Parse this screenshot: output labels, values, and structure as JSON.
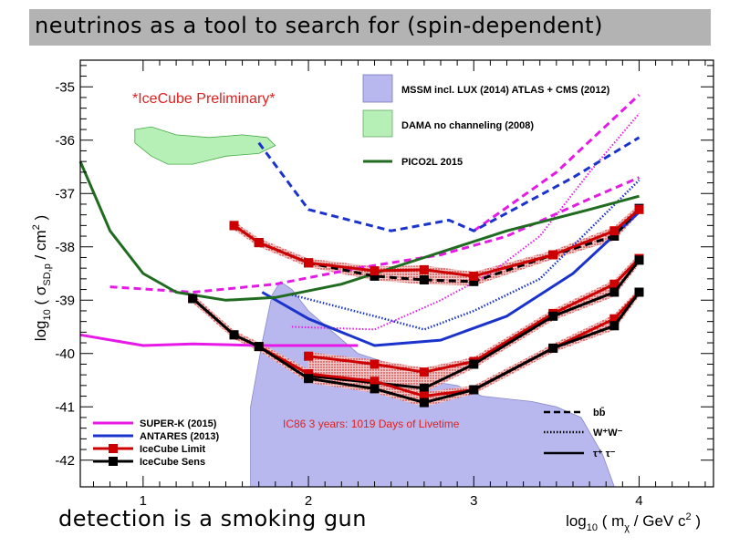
{
  "slide": {
    "title": "neutrinos as a tool to search for (spin-dependent)",
    "footer": "detection is a smoking gun"
  },
  "chart_data": {
    "type": "line",
    "xlabel_main": "log",
    "xlabel_sub": "10",
    "xlabel_rest": " ( m",
    "xlabel_chi": "χ",
    "xlabel_unit": " / GeV c",
    "xlabel_sup": "2",
    "xlabel_close": " )",
    "ylabel_main": "log",
    "ylabel_sub": "10",
    "ylabel_rest": " ( σ",
    "ylabel_sd": "SD,p",
    "ylabel_unit": " / cm",
    "ylabel_sup": "2",
    "ylabel_close": " )",
    "xlim": [
      0.62,
      4.45
    ],
    "ylim": [
      -42.5,
      -34.5
    ],
    "xticks": [
      1,
      2,
      3,
      4
    ],
    "yticks": [
      -35,
      -36,
      -37,
      -38,
      -39,
      -40,
      -41,
      -42
    ],
    "annotations": {
      "preliminary": "*IceCube Preliminary*",
      "livetime": "IC86 3 years: 1019 Days of Livetime"
    },
    "top_legend": [
      {
        "label": "MSSM incl. LUX (2014) ATLAS + CMS (2012)",
        "kind": "fill",
        "color": "#b8b8ee"
      },
      {
        "label": "DAMA no channeling (2008)",
        "kind": "fill",
        "color": "#b6f0b6"
      },
      {
        "label": "PICO2L 2015",
        "kind": "line",
        "color": "#1f6b1f"
      }
    ],
    "bottom_legend": [
      {
        "label": "SUPER-K (2015)",
        "color": "#e619e6"
      },
      {
        "label": "ANTARES (2013)",
        "color": "#1a33cc"
      },
      {
        "label": "IceCube Limit",
        "color": "#cc0000"
      },
      {
        "label": "IceCube Sens",
        "color": "#000000"
      }
    ],
    "channel_legend": [
      {
        "label": "bb̄",
        "dash": "dashed"
      },
      {
        "label": "W⁺W⁻",
        "dash": "dotted"
      },
      {
        "label": "τ⁺ τ⁻",
        "dash": "solid"
      }
    ],
    "regions": {
      "mssm": [
        [
          1.65,
          -42.5
        ],
        [
          1.65,
          -41.0
        ],
        [
          1.72,
          -39.8
        ],
        [
          1.78,
          -38.9
        ],
        [
          1.83,
          -38.65
        ],
        [
          1.9,
          -38.8
        ],
        [
          2.0,
          -39.2
        ],
        [
          2.15,
          -39.6
        ],
        [
          2.3,
          -40.0
        ],
        [
          2.5,
          -40.2
        ],
        [
          2.7,
          -40.5
        ],
        [
          2.9,
          -40.6
        ],
        [
          3.05,
          -40.8
        ],
        [
          3.2,
          -40.85
        ],
        [
          3.35,
          -40.9
        ],
        [
          3.5,
          -41.0
        ],
        [
          3.65,
          -41.2
        ],
        [
          3.78,
          -41.9
        ],
        [
          3.85,
          -42.5
        ]
      ],
      "dama": [
        [
          0.95,
          -35.8
        ],
        [
          1.05,
          -35.75
        ],
        [
          1.2,
          -35.9
        ],
        [
          1.4,
          -35.95
        ],
        [
          1.6,
          -35.9
        ],
        [
          1.75,
          -35.95
        ],
        [
          1.8,
          -36.1
        ],
        [
          1.7,
          -36.25
        ],
        [
          1.5,
          -36.3
        ],
        [
          1.3,
          -36.45
        ],
        [
          1.15,
          -36.45
        ],
        [
          1.05,
          -36.3
        ],
        [
          0.95,
          -36.05
        ]
      ]
    },
    "series": [
      {
        "name": "SUPER-K (2015)",
        "color": "#e619e6",
        "dash": "solid",
        "width": 3,
        "x": [
          0.62,
          1.0,
          1.3,
          1.7,
          2.0,
          2.3
        ],
        "y": [
          -39.65,
          -39.85,
          -39.82,
          -39.85,
          -39.85,
          -39.85
        ]
      },
      {
        "name": "SUPER-K (2015)",
        "color": "#e619e6",
        "dash": "dashed",
        "width": 3,
        "x": [
          0.8,
          1.3,
          1.8,
          2.3,
          2.8,
          3.2,
          3.7,
          4.0
        ],
        "y": [
          -38.75,
          -38.85,
          -38.7,
          -38.4,
          -38.15,
          -37.8,
          -37.1,
          -36.7
        ]
      },
      {
        "name": "SUPER-K (2015)",
        "color": "#e619e6",
        "dash": "dashed",
        "width": 3,
        "x": [
          3.0,
          3.5,
          4.0
        ],
        "y": [
          -37.7,
          -36.6,
          -35.15
        ]
      },
      {
        "name": "SUPER-K (2015)",
        "color": "#e619e6",
        "dash": "dotted",
        "width": 2,
        "x": [
          1.9,
          2.4,
          2.8,
          3.1,
          3.4,
          3.7,
          4.0
        ],
        "y": [
          -39.5,
          -39.55,
          -39.0,
          -38.5,
          -37.8,
          -36.6,
          -35.5
        ]
      },
      {
        "name": "ANTARES (2013)",
        "color": "#1a33cc",
        "dash": "solid",
        "width": 3,
        "x": [
          1.72,
          2.0,
          2.4,
          2.8,
          3.2,
          3.6,
          4.0
        ],
        "y": [
          -38.85,
          -39.35,
          -39.85,
          -39.75,
          -39.3,
          -38.5,
          -37.35
        ]
      },
      {
        "name": "ANTARES (2013)",
        "color": "#1a33cc",
        "dash": "dotted",
        "width": 2.5,
        "x": [
          1.9,
          2.4,
          2.7,
          3.0,
          3.4,
          4.0
        ],
        "y": [
          -38.9,
          -39.3,
          -39.55,
          -39.2,
          -38.6,
          -36.75
        ]
      },
      {
        "name": "ANTARES (2013)",
        "color": "#1a33cc",
        "dash": "dashed",
        "width": 3,
        "x": [
          1.7,
          2.0,
          2.5,
          2.85,
          3.0,
          3.3,
          3.6,
          4.0
        ],
        "y": [
          -36.05,
          -37.3,
          -37.7,
          -37.5,
          -37.7,
          -37.2,
          -36.7,
          -35.95
        ]
      },
      {
        "name": "PICO2L 2015",
        "color": "#1f6b1f",
        "dash": "solid",
        "width": 3,
        "x": [
          0.62,
          0.8,
          1.0,
          1.2,
          1.5,
          1.8,
          2.2,
          2.7,
          3.2,
          3.7,
          4.0
        ],
        "y": [
          -36.4,
          -37.7,
          -38.5,
          -38.85,
          -39.0,
          -38.95,
          -38.7,
          -38.2,
          -37.7,
          -37.3,
          -37.05
        ]
      }
    ],
    "icecube": {
      "limit_color": "#cc0000",
      "sens_color": "#000000",
      "bb_limit": {
        "x": [
          1.55,
          1.7,
          2.0,
          2.4,
          2.7,
          3.0,
          3.48,
          3.85,
          4.0
        ],
        "y": [
          -37.6,
          -37.92,
          -38.3,
          -38.45,
          -38.43,
          -38.55,
          -38.15,
          -37.7,
          -37.3
        ]
      },
      "bb_sens": {
        "x": [
          1.55,
          1.7,
          2.0,
          2.4,
          2.7,
          3.0,
          3.48,
          3.85,
          4.0
        ],
        "y": [
          -37.6,
          -37.92,
          -38.3,
          -38.55,
          -38.62,
          -38.65,
          -38.15,
          -37.8,
          -37.28
        ]
      },
      "ww_limit": {
        "x": [
          2.0,
          2.4,
          2.7,
          3.0,
          3.48,
          3.85,
          4.0
        ],
        "y": [
          -40.05,
          -40.2,
          -40.35,
          -40.15,
          -39.25,
          -38.7,
          -38.22
        ]
      },
      "ww_sens": {
        "x": [
          2.0,
          2.4,
          2.7,
          3.0,
          3.48,
          3.85,
          4.0
        ],
        "y": [
          -40.42,
          -40.55,
          -40.65,
          -40.2,
          -39.3,
          -38.85,
          -38.25
        ]
      },
      "tau_limit": {
        "x": [
          1.3,
          1.55,
          1.7,
          2.0,
          2.4,
          2.7,
          3.0,
          3.48,
          3.85,
          4.0
        ],
        "y": [
          -38.97,
          -39.65,
          -39.87,
          -40.38,
          -40.52,
          -40.8,
          -40.68,
          -39.9,
          -39.35,
          -38.85
        ]
      },
      "tau_sens": {
        "x": [
          1.3,
          1.55,
          1.7,
          2.0,
          2.4,
          2.7,
          3.0,
          3.48,
          3.85,
          4.0
        ],
        "y": [
          -38.97,
          -39.65,
          -39.87,
          -40.47,
          -40.66,
          -40.92,
          -40.68,
          -39.9,
          -39.48,
          -38.85
        ]
      }
    }
  }
}
